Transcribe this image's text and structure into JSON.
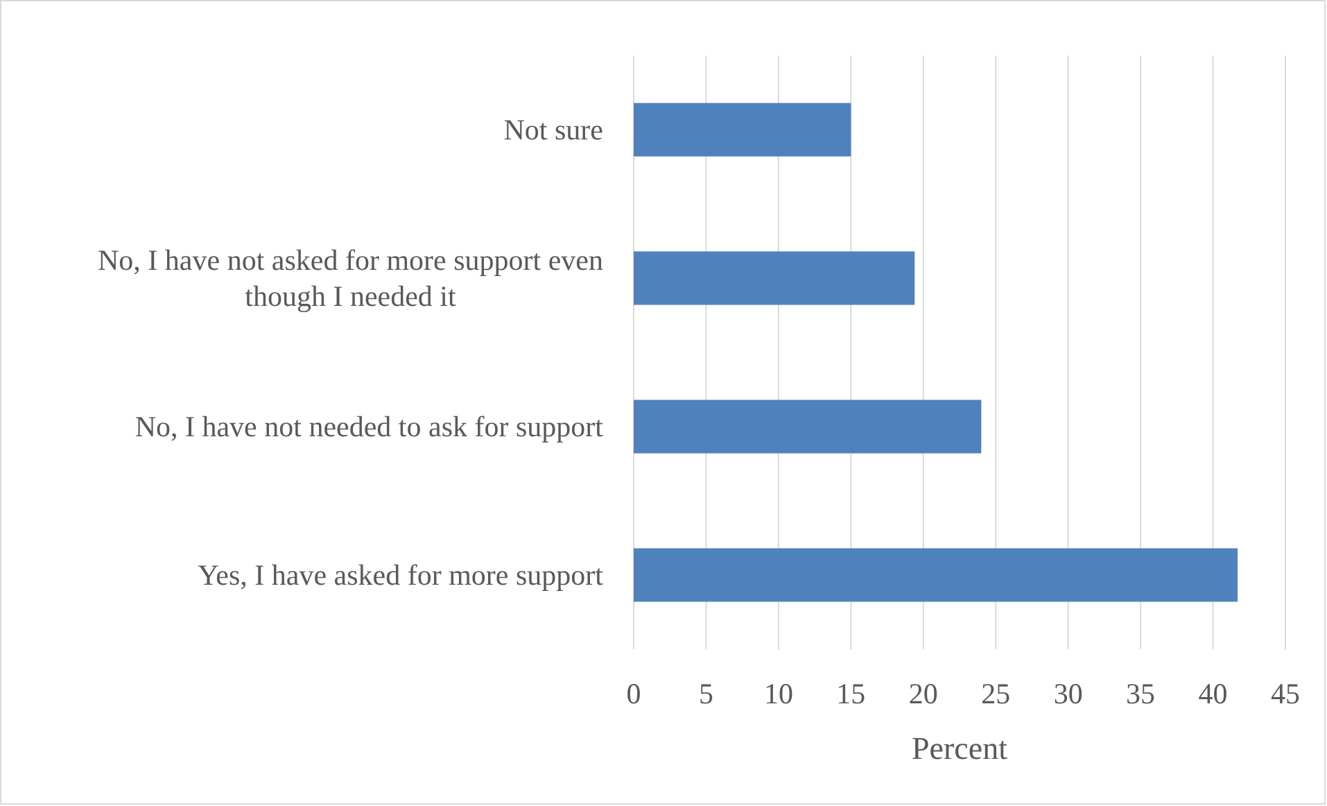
{
  "chart_data": {
    "type": "bar",
    "orientation": "horizontal",
    "categories": [
      "Not sure",
      "No, I have not asked for more support even though I needed it",
      "No, I have not needed to ask for support",
      "Yes, I have asked for more support"
    ],
    "values": [
      15,
      19.4,
      24,
      41.7
    ],
    "color": "#4f81bd",
    "xlim": [
      0,
      45
    ],
    "xticks": [
      0,
      5,
      10,
      15,
      20,
      25,
      30,
      35,
      40,
      45
    ],
    "xlabel": "Percent",
    "grid": "x"
  }
}
